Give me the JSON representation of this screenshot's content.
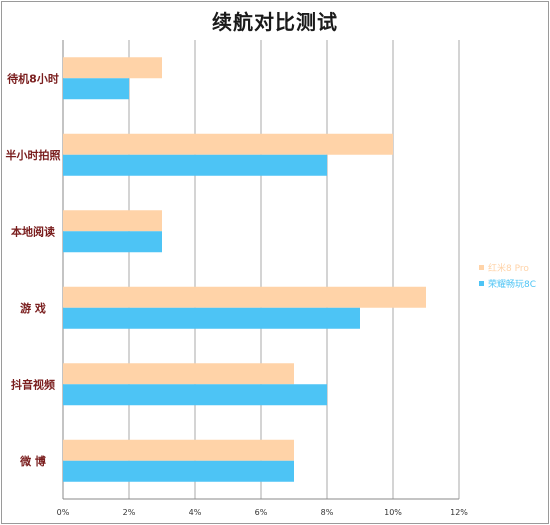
{
  "chart_data": {
    "type": "bar",
    "orientation": "horizontal",
    "title": "续航对比测试",
    "xlabel": "",
    "ylabel": "",
    "categories": [
      "待机8小时",
      "半小时拍照",
      "本地阅读",
      "游  戏",
      "抖音视频",
      "微  博"
    ],
    "series": [
      {
        "name": "红米8 Pro",
        "color": "#FFD3A8",
        "values": [
          3,
          10,
          3,
          11,
          7,
          7
        ]
      },
      {
        "name": "荣耀畅玩8C",
        "color": "#4DC4F5",
        "values": [
          2,
          8,
          3,
          9,
          8,
          7
        ]
      }
    ],
    "xlim": [
      0,
      12
    ],
    "xticks": [
      "0%",
      "2%",
      "4%",
      "6%",
      "8%",
      "10%",
      "12%"
    ],
    "grid": true,
    "legend": "right"
  }
}
